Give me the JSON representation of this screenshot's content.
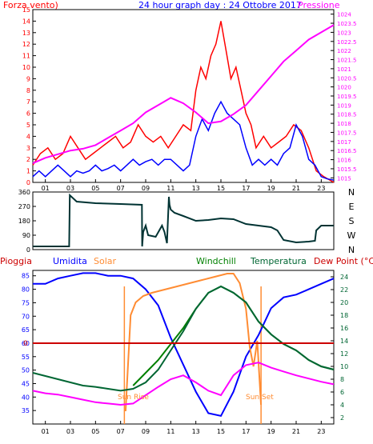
{
  "header": {
    "left": "Forza vento)",
    "title": "24 hour graph day : 24 Ottobre 2017",
    "right": "Pressione"
  },
  "legend": {
    "pioggia": "Pioggia",
    "umidita": "Umidita",
    "solar": "Solar",
    "windchill": "Windchill",
    "temperatura": "Temperatura",
    "dewpoint": "Dew Point (°C)"
  },
  "colors": {
    "frame": "#000000",
    "wind_avg": "#0000ff",
    "wind_gust": "#ff0000",
    "pressure": "#ff00ff",
    "direction": "#003333",
    "humidity": "#0000ff",
    "solar": "#ff8c33",
    "windchill": "#008000",
    "temperature": "#006633",
    "dewpoint": "#ff00ff",
    "rain": "#cc0000",
    "header_red": "#ff0000",
    "header_blue": "#0000ff",
    "header_magenta": "#ff00ff"
  },
  "chart_data": [
    {
      "id": "wind",
      "type": "line",
      "xlim": [
        0,
        24
      ],
      "x_ticks": [
        "01",
        "03",
        "05",
        "07",
        "09",
        "11",
        "13",
        "15",
        "17",
        "19",
        "21",
        "23"
      ],
      "ylim_left": [
        0,
        15
      ],
      "y_ticks_left": [
        "0",
        "1",
        "2",
        "3",
        "4",
        "5",
        "6",
        "7",
        "8",
        "9",
        "10",
        "11",
        "12",
        "13",
        "14",
        "15"
      ],
      "ylim_right": [
        1014.75,
        1024.25
      ],
      "y_ticks_right": [
        "1015",
        "1015.5",
        "1016",
        "1016.5",
        "1017",
        "1017.5",
        "1018",
        "1018.5",
        "1019",
        "1019.5",
        "1020",
        "1020.5",
        "1021",
        "1021.5",
        "1022",
        "1022.5",
        "1023",
        "1023.5",
        "1024"
      ],
      "series": [
        {
          "key": "gust",
          "axis": "left",
          "x": [
            0.0,
            0.6,
            1.2,
            1.8,
            2.4,
            3.0,
            3.6,
            4.2,
            4.8,
            5.4,
            6.0,
            6.6,
            7.2,
            7.8,
            8.4,
            9.0,
            9.6,
            10.2,
            10.8,
            11.4,
            12.0,
            12.6,
            13.0,
            13.4,
            13.8,
            14.2,
            14.6,
            15.0,
            15.4,
            15.8,
            16.2,
            16.6,
            17.0,
            17.4,
            17.8,
            18.4,
            19.0,
            19.6,
            20.2,
            20.8,
            21.4,
            22.0,
            22.6,
            23.2,
            24.0
          ],
          "y": [
            1.5,
            2.5,
            3,
            2,
            2.5,
            4,
            3,
            2,
            2.5,
            3,
            3.5,
            4,
            3,
            3.5,
            5,
            4,
            3.5,
            4,
            3,
            4,
            5,
            4.5,
            8,
            10,
            9,
            11,
            12,
            14,
            11.5,
            9,
            10,
            8,
            6,
            5,
            3,
            4,
            3,
            3.5,
            4,
            5,
            4.5,
            3,
            1,
            0.5,
            0
          ]
        },
        {
          "key": "avg",
          "axis": "left",
          "x": [
            0.0,
            0.5,
            1.0,
            1.5,
            2.0,
            2.5,
            3.0,
            3.5,
            4.0,
            4.5,
            5.0,
            5.5,
            6.0,
            6.5,
            7.0,
            7.5,
            8.0,
            8.5,
            9.0,
            9.5,
            10.0,
            10.5,
            11.0,
            11.5,
            12.0,
            12.5,
            13.0,
            13.5,
            14.0,
            14.5,
            15.0,
            15.5,
            16.0,
            16.5,
            17.0,
            17.5,
            18.0,
            18.5,
            19.0,
            19.5,
            20.0,
            20.5,
            21.0,
            21.5,
            22.0,
            22.5,
            23.0,
            23.5,
            24.0
          ],
          "y": [
            0.5,
            1,
            0.5,
            1,
            1.5,
            1,
            0.5,
            1,
            0.8,
            1,
            1.5,
            1,
            1.2,
            1.5,
            1,
            1.5,
            2,
            1.5,
            1.8,
            2,
            1.5,
            2,
            2,
            1.5,
            1,
            1.5,
            4,
            5.5,
            4.5,
            6,
            7,
            6,
            5.5,
            5,
            3,
            1.5,
            2,
            1.5,
            2,
            1.5,
            2.5,
            3,
            5,
            4,
            2,
            1.5,
            0.5,
            0.3,
            0.2
          ]
        },
        {
          "key": "pressure",
          "axis": "right",
          "x": [
            0,
            1,
            2,
            3,
            4,
            5,
            6,
            7,
            8,
            9,
            10,
            11,
            12,
            13,
            14,
            15,
            16,
            17,
            18,
            19,
            20,
            21,
            22,
            23,
            24
          ],
          "y": [
            1015.8,
            1016.1,
            1016.3,
            1016.5,
            1016.6,
            1016.8,
            1017.2,
            1017.6,
            1018.0,
            1018.6,
            1019.0,
            1019.4,
            1019.1,
            1018.6,
            1018.0,
            1018.1,
            1018.5,
            1019.0,
            1019.8,
            1020.6,
            1021.4,
            1022.0,
            1022.6,
            1023.0,
            1023.4
          ]
        }
      ]
    },
    {
      "id": "direction",
      "type": "line",
      "xlim": [
        0,
        24
      ],
      "ylim": [
        0,
        360
      ],
      "y_ticks": [
        "0",
        "90",
        "180",
        "270",
        "360"
      ],
      "compass": [
        "N",
        "W",
        "S",
        "E",
        "N"
      ],
      "series": [
        {
          "key": "dir",
          "x": [
            0.0,
            2.9,
            2.95,
            3.5,
            5.0,
            7.0,
            8.7,
            8.72,
            8.8,
            9.0,
            9.2,
            9.8,
            10.3,
            10.5,
            10.7,
            10.85,
            10.9,
            11.0,
            11.3,
            12.0,
            13.0,
            14.0,
            15.0,
            16.0,
            17.0,
            18.0,
            19.0,
            19.5,
            20.0,
            21.0,
            22.0,
            22.5,
            22.6,
            23.0,
            24.0
          ],
          "y": [
            20,
            20,
            340,
            300,
            290,
            285,
            280,
            20,
            110,
            150,
            90,
            80,
            150,
            110,
            40,
            330,
            280,
            250,
            230,
            210,
            180,
            185,
            195,
            190,
            160,
            150,
            140,
            120,
            60,
            45,
            50,
            55,
            120,
            150,
            150
          ]
        }
      ]
    },
    {
      "id": "temperature",
      "type": "line",
      "xlim": [
        0,
        24
      ],
      "x_ticks": [
        "01",
        "03",
        "05",
        "07",
        "09",
        "11",
        "13",
        "15",
        "17",
        "19",
        "21",
        "23"
      ],
      "ylim_left": [
        30,
        87
      ],
      "y_ticks_left": [
        "35",
        "40",
        "45",
        "50",
        "55",
        "60",
        "65",
        "70",
        "75",
        "80",
        "85"
      ],
      "ylim_right": [
        1,
        25
      ],
      "y_ticks_right": [
        "2",
        "4",
        "6",
        "8",
        "10",
        "12",
        "14",
        "16",
        "18",
        "20",
        "22",
        "24"
      ],
      "rain_value": "0",
      "annotations": {
        "sunrise": "Sun Rise",
        "sunset": "Sun Set"
      },
      "series": [
        {
          "key": "humidity",
          "axis": "left",
          "x": [
            0,
            1,
            2,
            3,
            4,
            5,
            6,
            7,
            8,
            9,
            10,
            11,
            12,
            13,
            14,
            15,
            16,
            17,
            18,
            19,
            20,
            21,
            22,
            23,
            24
          ],
          "y": [
            82,
            82,
            84,
            85,
            86,
            86,
            85,
            85,
            84,
            80,
            74,
            62,
            52,
            42,
            34,
            33,
            42,
            55,
            63,
            73,
            77,
            78,
            80,
            82,
            84
          ]
        },
        {
          "key": "solar",
          "axis": "right",
          "x": [
            0.0,
            7.2,
            7.4,
            7.8,
            8.2,
            8.8,
            9.5,
            10.5,
            11.5,
            12.5,
            13.5,
            14.5,
            15.5,
            16.0,
            16.5,
            17.0,
            17.3,
            17.6,
            17.9,
            18.2,
            24.0
          ],
          "y": [
            null,
            null,
            3,
            18,
            20,
            21,
            21.5,
            22,
            22.5,
            23,
            23.5,
            24,
            24.5,
            24.5,
            23,
            19,
            13,
            10,
            14,
            4,
            null
          ]
        },
        {
          "key": "windchill",
          "axis": "right",
          "x": [
            0,
            1,
            2,
            3,
            4,
            5,
            6,
            7,
            8,
            9,
            10,
            11,
            12,
            13,
            14,
            15,
            16,
            17,
            18,
            19,
            20,
            21,
            22,
            23,
            24
          ],
          "y": [
            null,
            null,
            null,
            null,
            null,
            null,
            null,
            null,
            7,
            9,
            11,
            13.5,
            16,
            19,
            21.5,
            22.5,
            21.5,
            20,
            17,
            15,
            13.5,
            12.5,
            11,
            10,
            9.5
          ]
        },
        {
          "key": "temperature",
          "axis": "right",
          "x": [
            0,
            1,
            2,
            3,
            4,
            5,
            6,
            7,
            8,
            9,
            10,
            11,
            12,
            13,
            14,
            15,
            16,
            17,
            18,
            19,
            20,
            21,
            22,
            23,
            24
          ],
          "y": [
            9,
            8.5,
            8,
            7.5,
            7,
            6.8,
            6.5,
            6.2,
            6.5,
            7.5,
            9.5,
            12.5,
            15.5,
            19,
            21.5,
            22.5,
            21.5,
            20,
            17,
            15,
            13.5,
            12.5,
            11,
            10,
            9.5
          ]
        },
        {
          "key": "dewpoint",
          "axis": "right",
          "x": [
            0,
            1,
            2,
            3,
            4,
            5,
            6,
            7,
            8,
            9,
            10,
            11,
            12,
            13,
            14,
            15,
            16,
            17,
            18,
            19,
            20,
            21,
            22,
            23,
            24
          ],
          "y": [
            6.2,
            5.8,
            5.6,
            5.2,
            4.8,
            4.4,
            4.2,
            4.0,
            4.2,
            5.5,
            6.8,
            8.0,
            8.6,
            7.5,
            6.2,
            5.5,
            8.6,
            10.2,
            10.6,
            9.8,
            9.2,
            8.6,
            8.1,
            7.6,
            7.2
          ]
        }
      ],
      "rain": {
        "value": 0,
        "color": "#cc0000"
      }
    }
  ]
}
